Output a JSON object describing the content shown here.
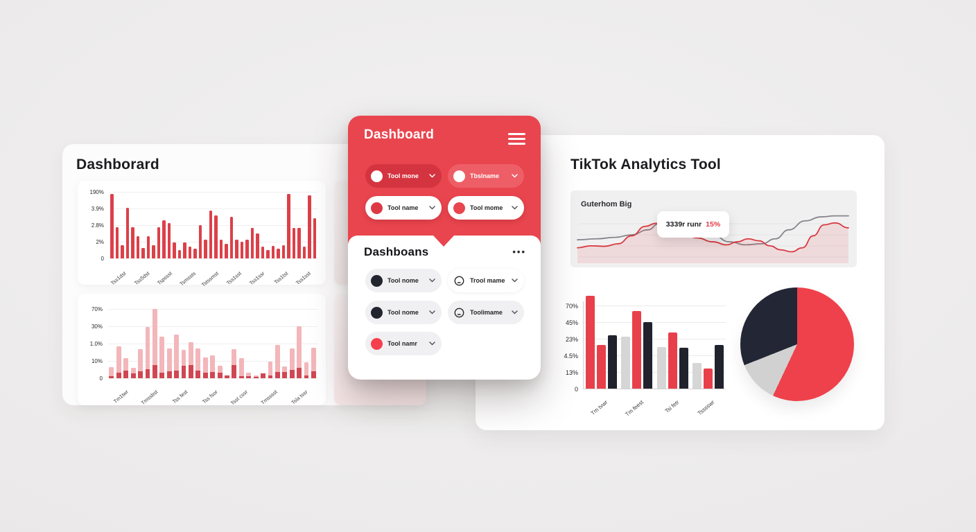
{
  "icons": {
    "menu-icon": "hamburger-3-lines",
    "more-options-icon": "•••",
    "chevron-down-icon": "⌄",
    "tool-badge-icon": "outlined-circle-with-dash"
  },
  "colors": {
    "primary_red": "#e9454e",
    "dark_red_pill": "#d43440",
    "light_red_pill": "#ee5e66",
    "bar_red": "#dc4049",
    "bar_pink": "#f3b6ba",
    "bar_pink_dark": "#cf4752",
    "grouped_red": "#e8404a",
    "grouped_gray": "#d7d6d6",
    "grouped_black": "#20222d",
    "pie_red": "#ef414b",
    "pie_gray": "#d2d1d1",
    "pie_dark": "#232634",
    "line_gray": "#85848a",
    "line_red": "#d8383f"
  },
  "left_panel": {
    "title": "Dashborard",
    "chart1": {
      "type": "bar",
      "y_labels": [
        "190%",
        "3.9%",
        "2.8%",
        "2%",
        "0"
      ],
      "x_labels": [
        "Tss1dst",
        "Tss5dst",
        "Tspssst",
        "Tsmssts",
        "Tstssmst",
        "Tss1sst",
        "Tss1ssr",
        "Tss1tst",
        "Tss1sst"
      ],
      "values": [
        97,
        47,
        20,
        76,
        47,
        33,
        16,
        33,
        20,
        47,
        57,
        53,
        24,
        12,
        24,
        18,
        15,
        50,
        28,
        72,
        65,
        28,
        22,
        63,
        28,
        25,
        28,
        46,
        37,
        18,
        12,
        19,
        15,
        20,
        97,
        46,
        46,
        18,
        95,
        60
      ],
      "ylim": [
        0,
        100
      ],
      "bar_color": "#dc4049",
      "grid": true
    },
    "chart2": {
      "type": "stacked-bar",
      "y_labels": [
        "70%",
        "30%",
        "1.0%",
        "10%",
        "0"
      ],
      "x_labels": [
        "Tm1twr",
        "Tmssbst",
        "Tss fest",
        "Tss fsor",
        "Tsst cssr",
        "Tmsssst",
        "Tsla tssr"
      ],
      "series": [
        {
          "name": "total",
          "color": "#f3b6ba",
          "values": [
            16,
            46,
            29,
            15,
            42,
            74,
            100,
            60,
            43,
            63,
            41,
            52,
            43,
            30,
            33,
            18,
            4,
            42,
            29,
            8,
            4,
            7,
            24,
            48,
            17,
            43,
            75,
            23,
            44
          ]
        },
        {
          "name": "base",
          "color": "#cf4752",
          "values": [
            3,
            8,
            11,
            7,
            10,
            13,
            19,
            8,
            10,
            11,
            18,
            19,
            11,
            8,
            9,
            8,
            4,
            19,
            3,
            3,
            2,
            7,
            4,
            9,
            9,
            12,
            15,
            4,
            10
          ]
        }
      ],
      "ylim": [
        0,
        100
      ],
      "grid": true
    }
  },
  "center_panel": {
    "header": {
      "title": "Dashboard"
    },
    "header_tools": [
      {
        "label": "Tool mone",
        "variant": "dark",
        "dot": "#ffffff"
      },
      {
        "label": "Tbslname",
        "variant": "light",
        "dot": "#ffffff"
      },
      {
        "label": "Tool name",
        "variant": "white",
        "dot": "#dd3a45"
      },
      {
        "label": "Tool mome",
        "variant": "white",
        "dot": "#e9454e"
      }
    ],
    "section": {
      "title": "Dashboans",
      "more_icon": "•••",
      "tools": [
        {
          "label": "Tool nome",
          "variant": "gray",
          "dot": "#22242e"
        },
        {
          "label": "Trool mame",
          "variant": "white-outline",
          "icon": "tool-badge"
        },
        {
          "label": "Tool nome",
          "variant": "gray",
          "dot": "#22242e"
        },
        {
          "label": "Toolimame",
          "variant": "gray",
          "icon": "tool-badge"
        },
        {
          "label": "Tool namr",
          "variant": "gray",
          "dot": "#f4404d"
        }
      ]
    }
  },
  "right_panel": {
    "title": "TikTok Analytics Tool",
    "line_chart": {
      "type": "line",
      "label": "Guterhom Big",
      "tooltip": {
        "value": "3339r runr",
        "percent": "15%"
      },
      "grid": true,
      "series": [
        {
          "name": "gray",
          "color": "#85848a",
          "points": [
            [
              0,
              60
            ],
            [
              7,
              58
            ],
            [
              14,
              55
            ],
            [
              20,
              50
            ],
            [
              26,
              40
            ],
            [
              30,
              28
            ],
            [
              34,
              20
            ],
            [
              38,
              17
            ],
            [
              44,
              30
            ],
            [
              50,
              50
            ],
            [
              56,
              64
            ],
            [
              62,
              70
            ],
            [
              68,
              68
            ],
            [
              73,
              58
            ],
            [
              78,
              40
            ],
            [
              84,
              22
            ],
            [
              90,
              14
            ],
            [
              95,
              12
            ],
            [
              100,
              12
            ]
          ]
        },
        {
          "name": "red",
          "color": "#d8383f",
          "fill": "rgba(232,70,80,0.13)",
          "points": [
            [
              0,
              76
            ],
            [
              5,
              72
            ],
            [
              10,
              73
            ],
            [
              15,
              68
            ],
            [
              20,
              52
            ],
            [
              25,
              33
            ],
            [
              29,
              27
            ],
            [
              33,
              30
            ],
            [
              38,
              42
            ],
            [
              44,
              56
            ],
            [
              50,
              64
            ],
            [
              55,
              70
            ],
            [
              59,
              64
            ],
            [
              63,
              58
            ],
            [
              67,
              62
            ],
            [
              71,
              72
            ],
            [
              75,
              80
            ],
            [
              79,
              84
            ],
            [
              83,
              76
            ],
            [
              87,
              52
            ],
            [
              91,
              30
            ],
            [
              95,
              26
            ],
            [
              100,
              36
            ]
          ]
        }
      ]
    },
    "bar_chart": {
      "type": "grouped-bar",
      "y_labels": [
        "70%",
        "45%",
        "23%",
        "4.5%",
        "13%",
        "0"
      ],
      "x_labels": [
        "Tm tvwr",
        "Tm feest",
        "Tsi fetr",
        "Tsssswr"
      ],
      "groups": [
        {
          "bars": [
            {
              "color": "red",
              "value": 98
            },
            {
              "color": "red",
              "value": 46
            },
            {
              "color": "black",
              "value": 56
            }
          ]
        },
        {
          "bars": [
            {
              "color": "gray",
              "value": 55
            },
            {
              "color": "red",
              "value": 82
            },
            {
              "color": "black",
              "value": 70
            }
          ]
        },
        {
          "bars": [
            {
              "color": "gray",
              "value": 44
            },
            {
              "color": "red",
              "value": 59
            },
            {
              "color": "black",
              "value": 43
            }
          ]
        },
        {
          "bars": [
            {
              "color": "gray",
              "value": 27
            },
            {
              "color": "red",
              "value": 21
            },
            {
              "color": "black",
              "value": 46
            }
          ]
        }
      ],
      "palette": {
        "red": "#e8404a",
        "gray": "#d7d6d6",
        "black": "#20222d"
      },
      "ylim": [
        0,
        100
      ]
    },
    "pie_chart": {
      "type": "pie",
      "start_angle": 0,
      "slices": [
        {
          "name": "red",
          "value": 57,
          "color": "#ef414b"
        },
        {
          "name": "gray",
          "value": 12,
          "color": "#d2d1d1"
        },
        {
          "name": "dark",
          "value": 31,
          "color": "#232634"
        }
      ]
    }
  }
}
